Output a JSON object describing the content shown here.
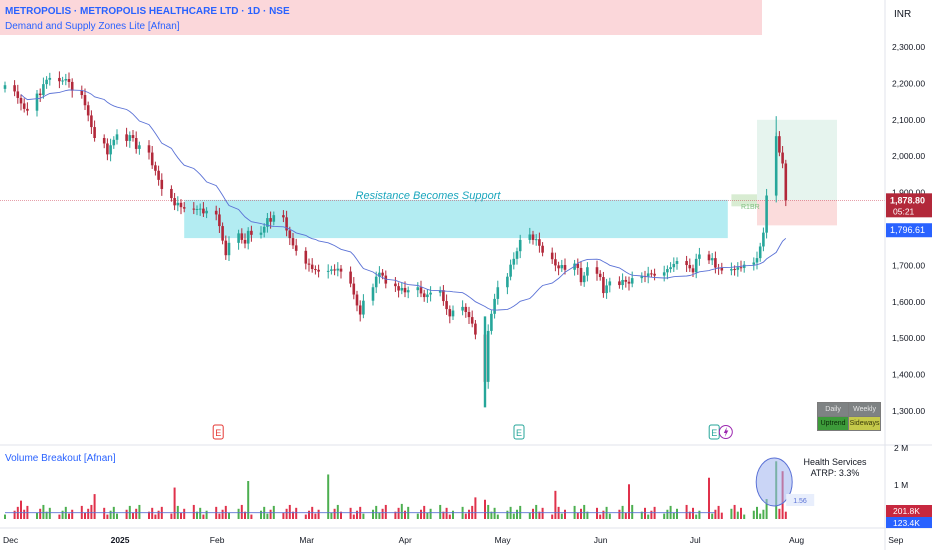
{
  "header": {
    "title": "METROPOLIS · METROPOLIS HEALTHCARE LTD · 1D · NSE",
    "indicator": "Demand and Supply Zones Lite [Afnan]"
  },
  "currency": "INR",
  "price_axis": {
    "current_price": "1,878.80",
    "countdown": "05:21",
    "ma_value": "1,796.61"
  },
  "annotations": {
    "zone_label": "Resistance Becomes Support",
    "rr_label": "R1BR",
    "earnings_marker": "E",
    "volume_spike_label": "1.56"
  },
  "volume_panel": {
    "title": "Volume Breakout [Afnan]",
    "sector": "Health Services",
    "atrp": "ATRP: 3.3%",
    "current_volume": "201.8K",
    "partial_volume": "123.4K"
  },
  "trend_table": {
    "headers": [
      "Daily",
      "Weekly"
    ],
    "values": [
      "Uptrend",
      "Sideways"
    ]
  },
  "colors": {
    "up": "#26a69a",
    "down": "#b2283a",
    "ma": "#5b72d6",
    "zone": "#b3ecf2",
    "title": "#2962ff",
    "vol_up": "#4caf50",
    "vol_down": "#e0314b"
  },
  "chart_data": {
    "type": "candlestick",
    "y_axis": {
      "ticks": [
        1300,
        1400,
        1500,
        1600,
        1700,
        1800,
        1900,
        2000,
        2100,
        2200,
        2300
      ],
      "tick_labels": [
        "1,300.00",
        "1,400.00",
        "1,500.00",
        "1,600.00",
        "1,700.00",
        "1,800.00",
        "1,900.00",
        "2,000.00",
        "2,100.00",
        "2,200.00",
        "2,300.00"
      ],
      "range": [
        1215,
        2410
      ]
    },
    "volume_axis": {
      "tick_labels": [
        "2 M",
        "1 M"
      ],
      "ticks": [
        2000000,
        1000000
      ]
    },
    "x_axis": {
      "labels": [
        "Dec",
        "2025",
        "Feb",
        "Mar",
        "Apr",
        "May",
        "Jun",
        "Jul",
        "Aug",
        "Sep"
      ],
      "start_date": "2024-11-29",
      "month_starts": [
        "2024-12-01",
        "2025-01-01",
        "2025-02-01",
        "2025-03-01",
        "2025-04-01",
        "2025-05-01",
        "2025-06-01",
        "2025-07-01",
        "2025-08-01",
        "2025-09-01"
      ]
    },
    "closes": [
      2195,
      2178,
      2160,
      2145,
      2130,
      2125,
      2172,
      2168,
      2198,
      2210,
      2215,
      2206,
      2208,
      2212,
      2204,
      2180,
      2168,
      2140,
      2112,
      2080,
      2050,
      2035,
      2005,
      2030,
      2045,
      2060,
      2042,
      2058,
      2050,
      2020,
      2030,
      2010,
      1975,
      1960,
      1935,
      1910,
      1885,
      1865,
      1872,
      1860,
      1856,
      1854,
      1855,
      1856,
      1843,
      1850,
      1840,
      1808,
      1768,
      1728,
      1762,
      1788,
      1770,
      1760,
      1795,
      1784,
      1790,
      1806,
      1830,
      1820,
      1838,
      1832,
      1796,
      1775,
      1755,
      1740,
      1705,
      1702,
      1690,
      1688,
      1683,
      1685,
      1689,
      1686,
      1691,
      1683,
      1650,
      1620,
      1590,
      1565,
      1603,
      1640,
      1669,
      1680,
      1672,
      1650,
      1643,
      1631,
      1638,
      1626,
      1632,
      1640,
      1623,
      1613,
      1620,
      1625,
      1632,
      1602,
      1580,
      1560,
      1576,
      1586,
      1572,
      1558,
      1540,
      1510,
      1380,
      1520,
      1567,
      1608,
      1640,
      1669,
      1702,
      1718,
      1739,
      1770,
      1785,
      1770,
      1772,
      1754,
      1735,
      1717,
      1700,
      1692,
      1701,
      1688,
      1705,
      1693,
      1654,
      1672,
      1695,
      1677,
      1668,
      1624,
      1645,
      1656,
      1646,
      1660,
      1655,
      1650,
      1665,
      1671,
      1670,
      1678,
      1677,
      1672,
      1681,
      1690,
      1695,
      1704,
      1712,
      1701,
      1692,
      1681,
      1718,
      1730,
      1714,
      1720,
      1694,
      1693,
      1686,
      1690,
      1688,
      1695,
      1693,
      1702,
      1708,
      1720,
      1752,
      1790,
      1892,
      2055,
      2010,
      1980,
      1879
    ],
    "ma_values_note": "rising 20-period average",
    "demand_zone": {
      "low": 1775,
      "high": 1880,
      "start_date": "2025-01-24",
      "end_date": "2025-07-11"
    },
    "target_zone": {
      "low": 1878.8,
      "high": 2100,
      "entry": 1878.8,
      "stop": 1810
    },
    "earnings_dates": [
      "2025-02-03",
      "2025-05-08",
      "2025-07-08"
    ],
    "volume": {
      "spike_value": 1560000,
      "baseline": 150000
    }
  }
}
